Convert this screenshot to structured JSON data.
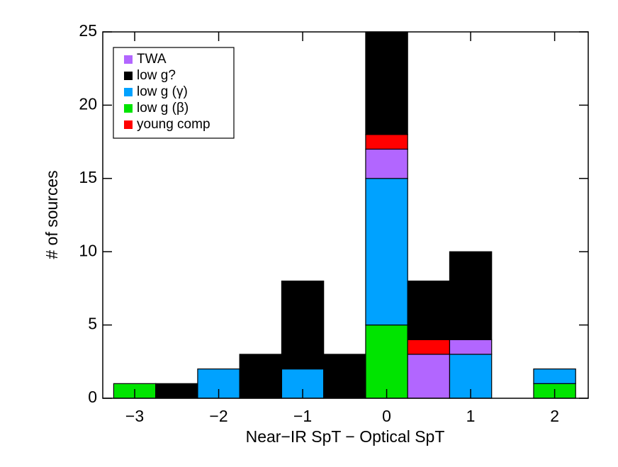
{
  "chart_data": {
    "type": "stacked_histogram",
    "x_label": "Near−IR SpT − Optical SpT",
    "y_label": "# of sources",
    "bins": [
      -3.25,
      -2.75,
      -2.25,
      -1.75,
      -1.25,
      -0.75,
      -0.25,
      0.25,
      0.75,
      1.25,
      1.75,
      2.25
    ],
    "series": [
      {
        "name": "TWA",
        "color": "#b266ff",
        "values": [
          0,
          0,
          0,
          0,
          0,
          0,
          2,
          3,
          1,
          0,
          0
        ]
      },
      {
        "name": "low g?",
        "color": "#000000",
        "values": [
          0,
          1,
          0,
          3,
          6,
          3,
          7,
          4,
          6,
          0,
          0
        ]
      },
      {
        "name": "low g (γ)",
        "color": "#00a2ff",
        "values": [
          0,
          0,
          2,
          0,
          2,
          0,
          10,
          0,
          3,
          0,
          1
        ]
      },
      {
        "name": "low g (β)",
        "color": "#00e400",
        "values": [
          1,
          0,
          0,
          0,
          0,
          0,
          5,
          0,
          0,
          0,
          1
        ]
      },
      {
        "name": "young comp",
        "color": "#ff0000",
        "values": [
          0,
          0,
          0,
          0,
          0,
          0,
          1,
          1,
          0,
          0,
          0
        ]
      }
    ],
    "xlim": [
      -3.38,
      2.4
    ],
    "ylim": [
      0,
      25
    ],
    "xticks": [
      {
        "value": -3,
        "label": "−3"
      },
      {
        "value": -2,
        "label": "−2"
      },
      {
        "value": -1,
        "label": "−1"
      },
      0,
      1,
      2
    ],
    "yticks": [
      0,
      5,
      10,
      15,
      20,
      25
    ],
    "legend": "upper left"
  }
}
